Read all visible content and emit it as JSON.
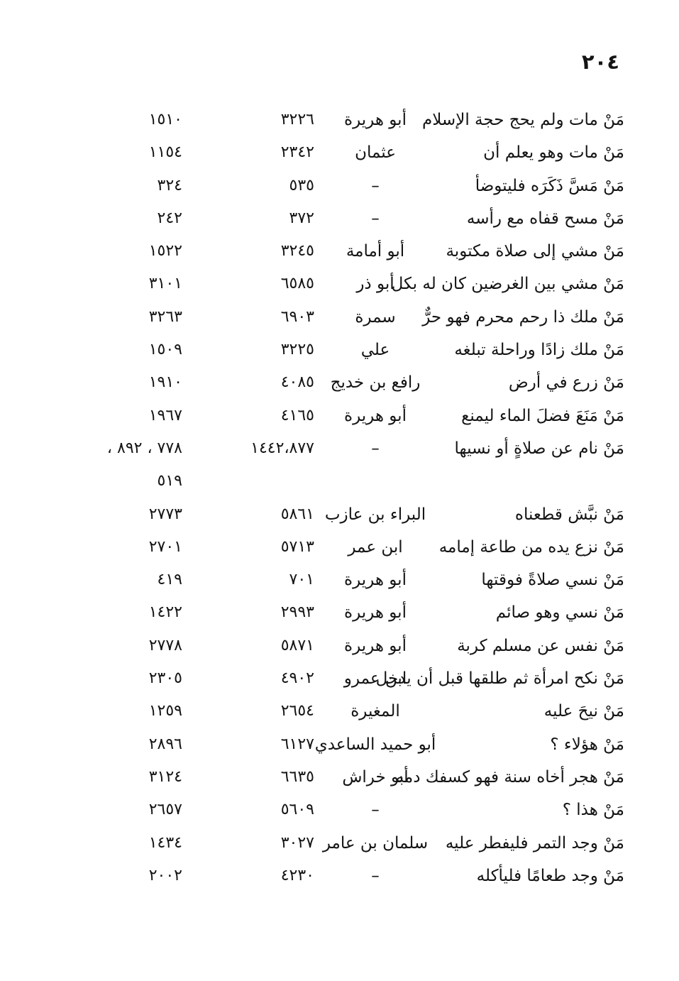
{
  "page": {
    "number": "٢٠٤"
  },
  "table": {
    "columns": [
      "hadith-text",
      "narrator",
      "hadith-number",
      "page-reference"
    ],
    "rows": [
      {
        "text": "مَنْ مات ولم يحج حجة الإسلام",
        "narrator": "أبو هريرة",
        "hadith_no": "٣٢٢٦",
        "page_no": "١٥١٠"
      },
      {
        "text": "مَنْ مات وهو يعلم أن",
        "narrator": "عثمان",
        "hadith_no": "٢٣٤٢",
        "page_no": "١١٥٤"
      },
      {
        "text": "مَنْ مَسَّ ذَكَرَه فليتوضأ",
        "narrator": "–",
        "hadith_no": "٥٣٥",
        "page_no": "٣٢٤"
      },
      {
        "text": "مَنْ مسح قفاه مع رأسه",
        "narrator": "–",
        "hadith_no": "٣٧٢",
        "page_no": "٢٤٢"
      },
      {
        "text": "مَنْ مشي إلى صلاة مكتوبة",
        "narrator": "أبو أمامة",
        "hadith_no": "٣٢٤٥",
        "page_no": "١٥٢٢"
      },
      {
        "text": "مَنْ مشي بين الغرضين كان له بكل",
        "narrator": "أبو ذر",
        "hadith_no": "٦٥٨٥",
        "page_no": "٣١٠١"
      },
      {
        "text": "مَنْ ملك ذا رحم محرم فهو حرٌّ",
        "narrator": "سمرة",
        "hadith_no": "٦٩٠٣",
        "page_no": "٣٢٦٣"
      },
      {
        "text": "مَنْ ملك زادًا وراحلة تبلغه",
        "narrator": "علي",
        "hadith_no": "٣٢٢٥",
        "page_no": "١٥٠٩"
      },
      {
        "text": "مَنْ زرع في أرض",
        "narrator": "رافع بن خديج",
        "hadith_no": "٤٠٨٥",
        "page_no": "١٩١٠"
      },
      {
        "text": "مَنْ مَنَعَ فضلَ الماء ليمنع",
        "narrator": "أبو هريرة",
        "hadith_no": "٤١٦٥",
        "page_no": "١٩٦٧"
      },
      {
        "text": "مَنْ نام عن صلاةٍ أو نسيها",
        "narrator": "–",
        "hadith_no": "١٤٤٢،٨٧٧",
        "page_no": "٧٧٨ ، ٨٩٢ ،",
        "page_no_cont": "٥١٩"
      },
      {
        "text": "مَنْ نبَّش قطعناه",
        "narrator": "البراء بن عازب",
        "hadith_no": "٥٨٦١",
        "page_no": "٢٧٧٣"
      },
      {
        "text": "مَنْ نزع يده من طاعة إمامه",
        "narrator": "ابن عمر",
        "hadith_no": "٥٧١٣",
        "page_no": "٢٧٠١"
      },
      {
        "text": "مَنْ نسي صلاةً فوقتها",
        "narrator": "أبو هريرة",
        "hadith_no": "٧٠١",
        "page_no": "٤١٩"
      },
      {
        "text": "مَنْ نسي وهو صائم",
        "narrator": "أبو هريرة",
        "hadith_no": "٢٩٩٣",
        "page_no": "١٤٢٢"
      },
      {
        "text": "مَنْ نفس عن مسلم كربة",
        "narrator": "أبو هريرة",
        "hadith_no": "٥٨٧١",
        "page_no": "٢٧٧٨"
      },
      {
        "text": "مَنْ نكح امرأة ثم طلقها قبل أن يدخل",
        "narrator": "ابن عمرو",
        "hadith_no": "٤٩٠٢",
        "page_no": "٢٣٠٥"
      },
      {
        "text": "مَنْ نيحَ عليه",
        "narrator": "المغيرة",
        "hadith_no": "٢٦٥٤",
        "page_no": "١٢٥٩"
      },
      {
        "text": "مَنْ هؤلاء ؟",
        "narrator": "أبو حميد الساعدي",
        "hadith_no": "٦١٢٧",
        "page_no": "٢٨٩٦"
      },
      {
        "text": "مَنْ هجر أخاه سنة فهو كسفك دمه",
        "narrator": "أبو خراش",
        "hadith_no": "٦٦٣٥",
        "page_no": "٣١٢٤"
      },
      {
        "text": "مَنْ هذا ؟",
        "narrator": "–",
        "hadith_no": "٥٦٠٩",
        "page_no": "٢٦٥٧"
      },
      {
        "text": "مَنْ وجد التمر فليفطر عليه",
        "narrator": "سلمان بن عامر",
        "hadith_no": "٣٠٢٧",
        "page_no": "١٤٣٤"
      },
      {
        "text": "مَنْ وجد طعامًا فليأكله",
        "narrator": "–",
        "hadith_no": "٤٢٣٠",
        "page_no": "٢٠٠٢"
      }
    ]
  }
}
